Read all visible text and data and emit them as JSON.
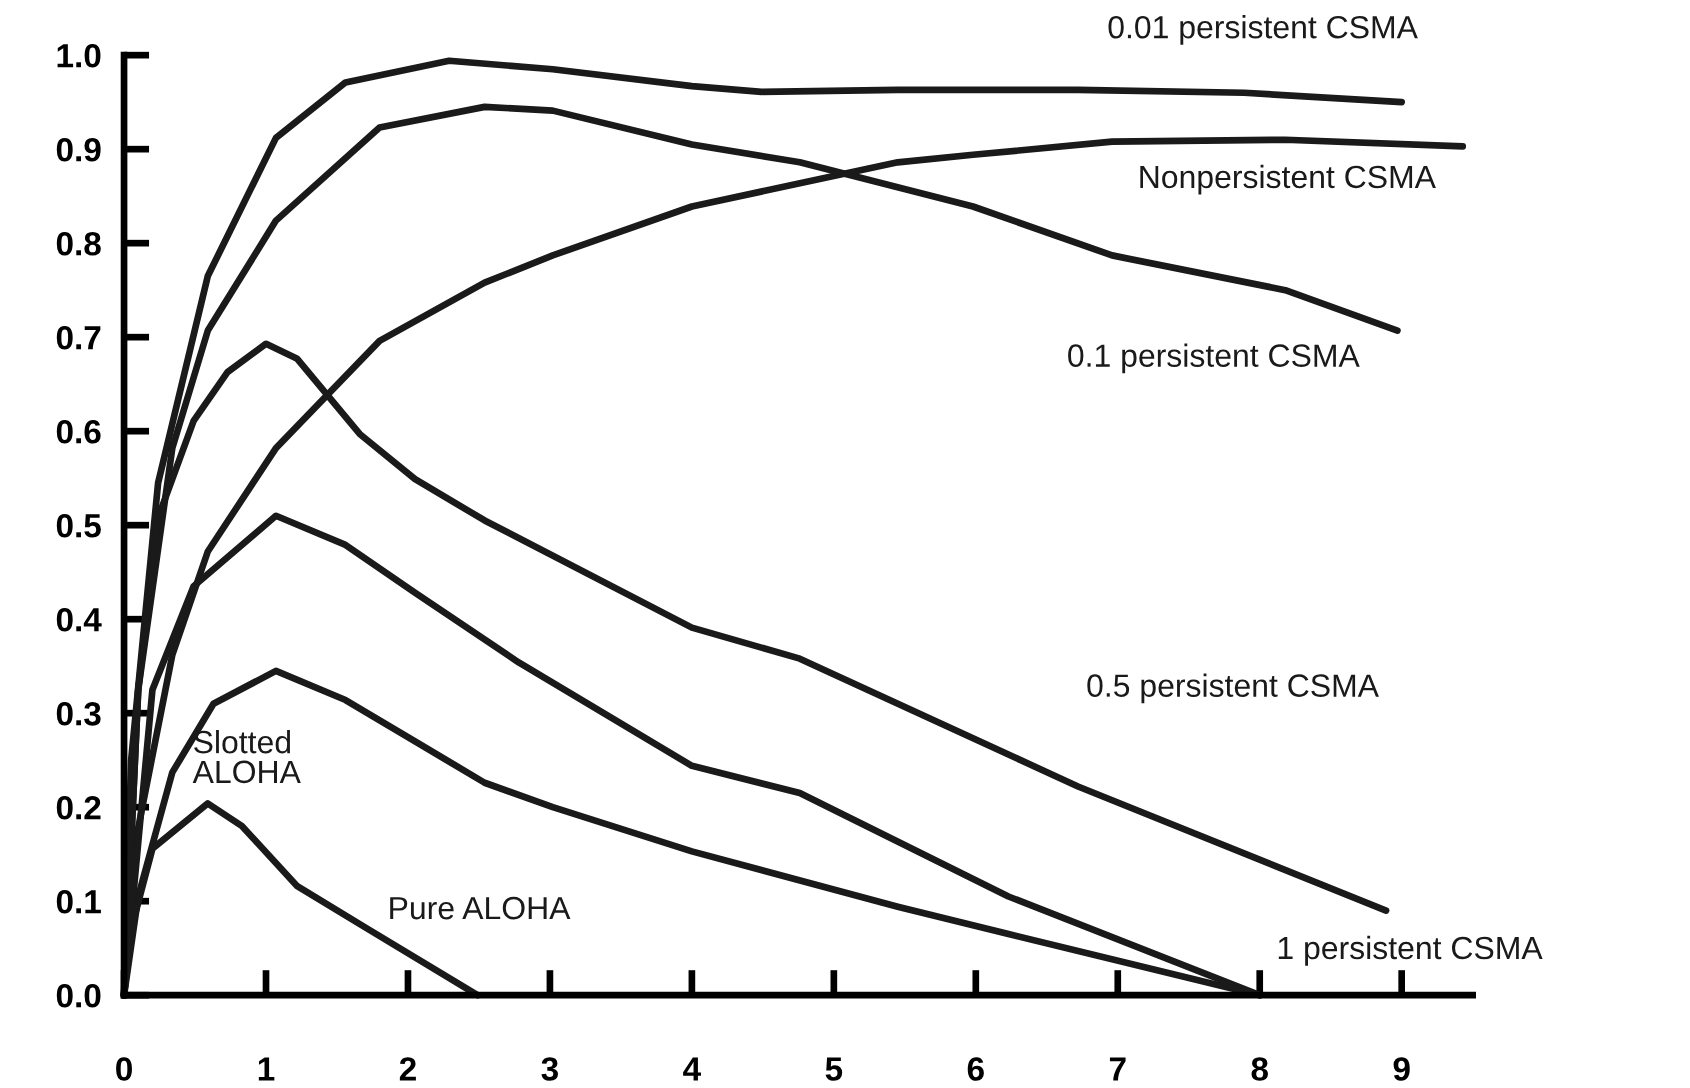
{
  "chart_data": {
    "type": "line",
    "xlim": [
      0,
      9.5
    ],
    "ylim": [
      0,
      1.0
    ],
    "xticks": [
      0,
      1,
      2,
      3,
      4,
      5,
      6,
      7,
      8,
      9
    ],
    "yticks": [
      {
        "value": 0,
        "label": "0.0"
      },
      0.1,
      0.2,
      0.3,
      0.4,
      0.5,
      0.6,
      0.7,
      0.8,
      0.9,
      {
        "value": 1,
        "label": "1.0"
      }
    ],
    "grid": false,
    "legend": false,
    "marker": "none",
    "line_style": "solid",
    "series": [
      {
        "name": "0.01 persistent CSMA",
        "color": "#1a1a1a",
        "x": [
          0,
          0.05,
          0.24,
          0.59,
          1.07,
          1.56,
          2.29,
          3.02,
          4.0,
          4.49,
          5.45,
          6.72,
          7.89,
          9.0
        ],
        "values": [
          0,
          0.25,
          0.545,
          0.765,
          0.912,
          0.971,
          0.994,
          0.985,
          0.967,
          0.961,
          0.963,
          0.963,
          0.96,
          0.95
        ]
      },
      {
        "name": "Nonpersistent CSMA",
        "color": "#1a1a1a",
        "x": [
          0,
          0.1,
          0.34,
          0.59,
          1.07,
          1.8,
          2.54,
          3.02,
          4.0,
          5.45,
          5.98,
          6.96,
          8.18,
          9.43
        ],
        "values": [
          0,
          0.178,
          0.362,
          0.472,
          0.582,
          0.696,
          0.758,
          0.787,
          0.839,
          0.886,
          0.894,
          0.908,
          0.91,
          0.903
        ]
      },
      {
        "name": "0.1 persistent CSMA",
        "color": "#1a1a1a",
        "x": [
          0,
          0.1,
          0.34,
          0.59,
          1.07,
          1.8,
          2.54,
          3.02,
          4.0,
          4.76,
          5.98,
          6.96,
          8.18,
          8.97
        ],
        "values": [
          0,
          0.325,
          0.582,
          0.707,
          0.824,
          0.923,
          0.945,
          0.941,
          0.905,
          0.886,
          0.839,
          0.787,
          0.75,
          0.707
        ]
      },
      {
        "name": "0.5 persistent CSMA",
        "color": "#1a1a1a",
        "x": [
          0,
          0.1,
          0.24,
          0.49,
          0.73,
          1.0,
          1.22,
          1.66,
          2.05,
          2.54,
          4.0,
          4.76,
          6.72,
          8.89
        ],
        "values": [
          0,
          0.325,
          0.508,
          0.611,
          0.663,
          0.693,
          0.677,
          0.597,
          0.549,
          0.505,
          0.391,
          0.358,
          0.222,
          0.09
        ]
      },
      {
        "name": "1 persistent CSMA",
        "color": "#1a1a1a",
        "x": [
          0,
          0.2,
          0.49,
          1.07,
          1.56,
          2.05,
          2.78,
          4.0,
          4.76,
          6.23,
          8.0
        ],
        "values": [
          0,
          0.325,
          0.435,
          0.51,
          0.479,
          0.428,
          0.354,
          0.244,
          0.215,
          0.105,
          0
        ]
      },
      {
        "name": "Slotted\nALOHA",
        "color": "#1a1a1a",
        "x": [
          0,
          0.1,
          0.34,
          0.63,
          1.07,
          1.56,
          2.05,
          2.54,
          3.02,
          4.0,
          5.45,
          6.23,
          8.0
        ],
        "values": [
          0,
          0.105,
          0.237,
          0.31,
          0.345,
          0.314,
          0.27,
          0.226,
          0.2,
          0.153,
          0.094,
          0.065,
          0
        ]
      },
      {
        "name": "Pure ALOHA",
        "color": "#1a1a1a",
        "x": [
          0,
          0.05,
          0.2,
          0.59,
          0.83,
          1.22,
          1.7,
          2.49
        ],
        "values": [
          0,
          0.07,
          0.156,
          0.204,
          0.18,
          0.116,
          0.072,
          0
        ]
      }
    ]
  }
}
